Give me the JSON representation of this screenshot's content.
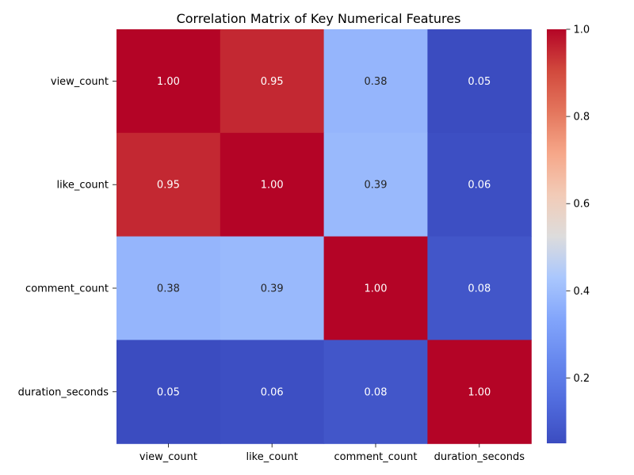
{
  "chart_data": {
    "type": "heatmap",
    "title": "Correlation Matrix of Key Numerical Features",
    "xlabel": "",
    "ylabel": "",
    "x_categories": [
      "view_count",
      "like_count",
      "comment_count",
      "duration_seconds"
    ],
    "y_categories": [
      "view_count",
      "like_count",
      "comment_count",
      "duration_seconds"
    ],
    "values": [
      [
        1.0,
        0.95,
        0.38,
        0.05
      ],
      [
        0.95,
        1.0,
        0.39,
        0.06
      ],
      [
        0.38,
        0.39,
        1.0,
        0.08
      ],
      [
        0.05,
        0.06,
        0.08,
        1.0
      ]
    ],
    "value_labels": [
      [
        "1.00",
        "0.95",
        "0.38",
        "0.05"
      ],
      [
        "0.95",
        "1.00",
        "0.39",
        "0.06"
      ],
      [
        "0.38",
        "0.39",
        "1.00",
        "0.08"
      ],
      [
        "0.05",
        "0.06",
        "0.08",
        "1.00"
      ]
    ],
    "colormap": "coolwarm",
    "colorbar": {
      "range": [
        0.05,
        1.0
      ],
      "ticks": [
        0.2,
        0.4,
        0.6,
        0.8,
        1.0
      ],
      "tick_labels": [
        "0.2",
        "0.4",
        "0.6",
        "0.8",
        "1.0"
      ]
    },
    "grid": false,
    "legend": "colorbar-right"
  }
}
